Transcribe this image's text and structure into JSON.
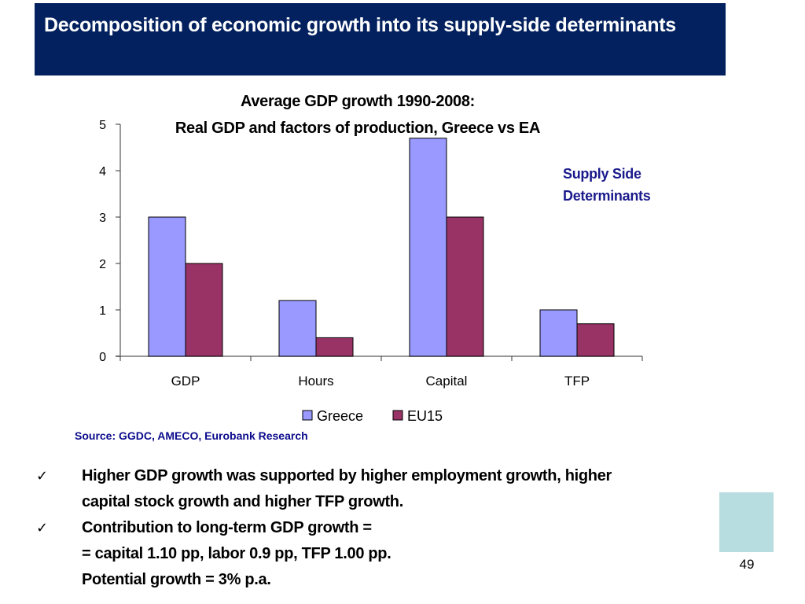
{
  "slide": {
    "title": "Decomposition of economic growth into its supply-side determinants",
    "chart_title_line1": "Average GDP growth 1990-2008:",
    "chart_title_line2": "Real GDP and factors of production, Greece vs EA",
    "annotation_line1": "Supply Side",
    "annotation_line2": "Determinants",
    "source": "Source: GGDC, AMECO, Eurobank Research",
    "bullets": [
      {
        "check": "✓",
        "lines": [
          "Higher GDP growth was supported by higher employment growth, higher",
          "capital stock growth and higher TFP growth."
        ]
      },
      {
        "check": "✓",
        "lines": [
          "Contribution to long-term GDP growth =",
          "= capital 1.10 pp, labor 0.9 pp, TFP 1.00 pp.",
          "Potential growth = 3% p.a."
        ]
      }
    ],
    "page_number": "49",
    "colors": {
      "title_bg": "#03215e",
      "accent_square": "#b7dde1",
      "annotation": "#1a1a8c"
    }
  },
  "chart_data": {
    "type": "bar",
    "title": "Average GDP growth 1990-2008: Real GDP and factors of production, Greece vs EA",
    "xlabel": "",
    "ylabel": "",
    "categories": [
      "GDP",
      "Hours",
      "Capital",
      "TFP"
    ],
    "series": [
      {
        "name": "Greece",
        "color": "#9999ff",
        "values": [
          3.0,
          1.2,
          4.7,
          1.0
        ]
      },
      {
        "name": "EU15",
        "color": "#993366",
        "values": [
          2.0,
          0.4,
          3.0,
          0.7
        ]
      }
    ],
    "ylim": [
      0,
      5
    ],
    "yticks": [
      0,
      1,
      2,
      3,
      4,
      5
    ],
    "grid": false,
    "legend": "bottom"
  }
}
